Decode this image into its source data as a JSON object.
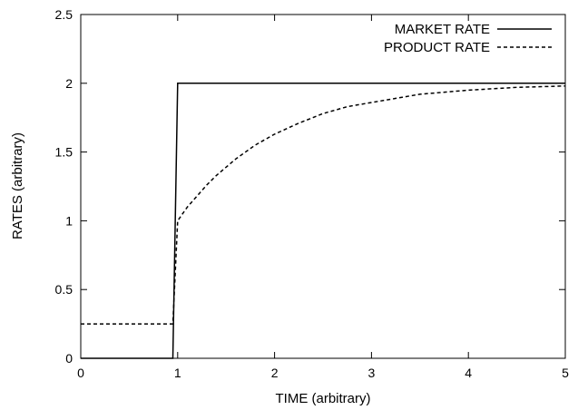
{
  "chart_data": {
    "type": "line",
    "title": "",
    "xlabel": "TIME (arbitrary)",
    "ylabel": "RATES (arbitrary)",
    "xlim": [
      0,
      5
    ],
    "ylim": [
      0,
      2.5
    ],
    "xticks": [
      0,
      1,
      2,
      3,
      4,
      5
    ],
    "yticks": [
      0,
      0.5,
      1,
      1.5,
      2,
      2.5
    ],
    "xtick_labels": [
      "0",
      "1",
      "2",
      "3",
      "4",
      "5"
    ],
    "ytick_labels": [
      "0",
      "0.5",
      "1",
      "1.5",
      "2",
      "2.5"
    ],
    "grid": false,
    "legend_position": "top-right",
    "series": [
      {
        "name": "MARKET RATE",
        "style": "solid",
        "color": "#000000",
        "x": [
          0,
          0.95,
          1.0,
          5.0
        ],
        "y": [
          0,
          0,
          2,
          2
        ]
      },
      {
        "name": "PRODUCT RATE",
        "style": "dashed",
        "color": "#000000",
        "x": [
          0,
          0.95,
          1.0,
          1.05,
          1.1,
          1.2,
          1.3,
          1.4,
          1.5,
          1.6,
          1.8,
          2.0,
          2.25,
          2.5,
          2.75,
          3.0,
          3.5,
          4.0,
          4.5,
          5.0
        ],
        "y": [
          0.25,
          0.25,
          1.0,
          1.05,
          1.1,
          1.18,
          1.26,
          1.33,
          1.39,
          1.45,
          1.55,
          1.63,
          1.71,
          1.78,
          1.83,
          1.86,
          1.92,
          1.95,
          1.97,
          1.98
        ]
      }
    ]
  }
}
